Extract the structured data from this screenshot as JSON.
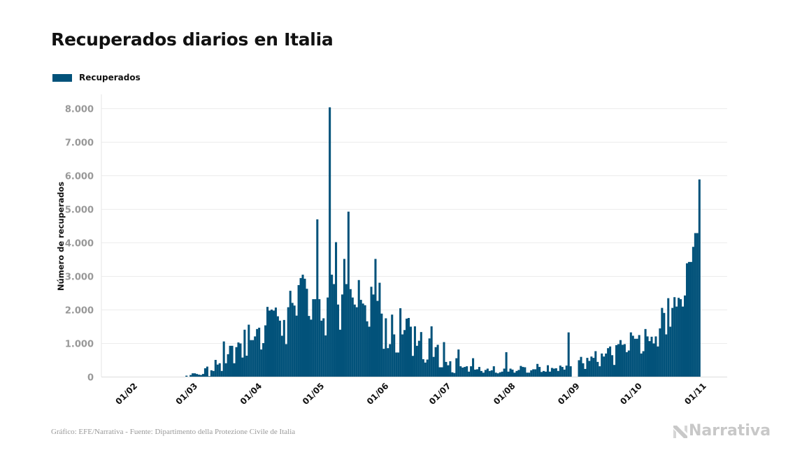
{
  "chart_data": {
    "type": "bar",
    "title": "Recuperados diarios en Italia",
    "xlabel": "",
    "ylabel": "Número de recuperados",
    "ylim": [
      0,
      8000
    ],
    "grid": true,
    "legend_position": "top-left",
    "y_ticks": [
      "0",
      "1.000",
      "2.000",
      "3.000",
      "4.000",
      "5.000",
      "6.000",
      "7.000",
      "8.000"
    ],
    "y_tick_values": [
      0,
      1000,
      2000,
      3000,
      4000,
      5000,
      6000,
      7000,
      8000
    ],
    "x_ticks": [
      "01/02",
      "01/03",
      "01/04",
      "01/05",
      "01/06",
      "01/07",
      "01/08",
      "01/09",
      "01/10",
      "01/11"
    ],
    "categories": [
      "01/02",
      "02/02",
      "03/02",
      "04/02",
      "05/02",
      "06/02",
      "07/02",
      "08/02",
      "09/02",
      "10/02",
      "11/02",
      "12/02",
      "13/02",
      "14/02",
      "15/02",
      "16/02",
      "17/02",
      "18/02",
      "19/02",
      "20/02",
      "21/02",
      "22/02",
      "23/02",
      "24/02",
      "25/02",
      "26/02",
      "27/02",
      "28/02",
      "29/02",
      "01/03",
      "02/03",
      "03/03",
      "04/03",
      "05/03",
      "06/03",
      "07/03",
      "08/03",
      "09/03",
      "10/03",
      "11/03",
      "12/03",
      "13/03",
      "14/03",
      "15/03",
      "16/03",
      "17/03",
      "18/03",
      "19/03",
      "20/03",
      "21/03",
      "22/03",
      "23/03",
      "24/03",
      "25/03",
      "26/03",
      "27/03",
      "28/03",
      "29/03",
      "30/03",
      "31/03",
      "01/04",
      "02/04",
      "03/04",
      "04/04",
      "05/04",
      "06/04",
      "07/04",
      "08/04",
      "09/04",
      "10/04",
      "11/04",
      "12/04",
      "13/04",
      "14/04",
      "15/04",
      "16/04",
      "17/04",
      "18/04",
      "19/04",
      "20/04",
      "21/04",
      "22/04",
      "23/04",
      "24/04",
      "25/04",
      "26/04",
      "27/04",
      "28/04",
      "29/04",
      "30/04",
      "01/05",
      "02/05",
      "03/05",
      "04/05",
      "05/05",
      "06/05",
      "07/05",
      "08/05",
      "09/05",
      "10/05",
      "11/05",
      "12/05",
      "13/05",
      "14/05",
      "15/05",
      "16/05",
      "17/05",
      "18/05",
      "19/05",
      "20/05",
      "21/05",
      "22/05",
      "23/05",
      "24/05",
      "25/05",
      "26/05",
      "27/05",
      "28/05",
      "29/05",
      "30/05",
      "31/05",
      "01/06",
      "02/06",
      "03/06",
      "04/06",
      "05/06",
      "06/06",
      "07/06",
      "08/06",
      "09/06",
      "10/06",
      "11/06",
      "12/06",
      "13/06",
      "14/06",
      "15/06",
      "16/06",
      "17/06",
      "18/06",
      "19/06",
      "20/06",
      "21/06",
      "22/06",
      "23/06",
      "24/06",
      "25/06",
      "26/06",
      "27/06",
      "28/06",
      "29/06",
      "30/06",
      "01/07",
      "02/07",
      "03/07",
      "04/07",
      "05/07",
      "06/07",
      "07/07",
      "08/07",
      "09/07",
      "10/07",
      "11/07",
      "12/07",
      "13/07",
      "14/07",
      "15/07",
      "16/07",
      "17/07",
      "18/07",
      "19/07",
      "20/07",
      "21/07",
      "22/07",
      "23/07",
      "24/07",
      "25/07",
      "26/07",
      "27/07",
      "28/07",
      "29/07",
      "30/07",
      "31/07",
      "01/08",
      "02/08",
      "03/08",
      "04/08",
      "05/08",
      "06/08",
      "07/08",
      "08/08",
      "09/08",
      "10/08",
      "11/08",
      "12/08",
      "13/08",
      "14/08",
      "15/08",
      "16/08",
      "17/08",
      "18/08",
      "19/08",
      "20/08",
      "21/08",
      "22/08",
      "23/08",
      "24/08",
      "25/08",
      "26/08",
      "27/08",
      "28/08",
      "29/08",
      "30/08",
      "31/08",
      "01/09",
      "02/09",
      "03/09",
      "04/09",
      "05/09",
      "06/09",
      "07/09",
      "08/09",
      "09/09",
      "10/09",
      "11/09",
      "12/09",
      "13/09",
      "14/09",
      "15/09",
      "16/09",
      "17/09",
      "18/09",
      "19/09",
      "20/09",
      "21/09",
      "22/09",
      "23/09",
      "24/09",
      "25/09",
      "26/09",
      "27/09",
      "28/09",
      "29/09",
      "30/09",
      "01/10",
      "02/10",
      "03/10",
      "04/10",
      "05/10",
      "06/10",
      "07/10",
      "08/10",
      "09/10",
      "10/10",
      "11/10",
      "12/10",
      "13/10",
      "14/10",
      "15/10",
      "16/10",
      "17/10",
      "18/10",
      "19/10",
      "20/10",
      "21/10",
      "22/10",
      "23/10",
      "24/10",
      "25/10",
      "26/10",
      "27/10",
      "28/10",
      "29/10",
      "30/10",
      "31/10",
      "01/11"
    ],
    "series": [
      {
        "name": "Recuperados",
        "color": "#02527a",
        "values": [
          0,
          0,
          0,
          0,
          0,
          0,
          0,
          0,
          0,
          0,
          0,
          0,
          0,
          0,
          0,
          0,
          0,
          0,
          0,
          0,
          0,
          0,
          0,
          0,
          0,
          0,
          0,
          30,
          0,
          50,
          100,
          100,
          80,
          60,
          50,
          80,
          250,
          300,
          15,
          190,
          170,
          500,
          360,
          400,
          170,
          1050,
          400,
          670,
          920,
          920,
          400,
          880,
          1020,
          990,
          570,
          1400,
          625,
          1550,
          1090,
          1090,
          1200,
          1420,
          1460,
          810,
          1000,
          1530,
          2080,
          1970,
          2000,
          1970,
          2060,
          1800,
          1670,
          1220,
          1690,
          970,
          2070,
          2560,
          2200,
          2120,
          1820,
          2730,
          2940,
          3040,
          2920,
          2620,
          1810,
          1700,
          2310,
          2310,
          4690,
          2310,
          1670,
          1740,
          1230,
          2360,
          8030,
          3040,
          2760,
          4010,
          2150,
          1400,
          2450,
          3510,
          2760,
          4920,
          2610,
          2360,
          2150,
          2070,
          2880,
          2290,
          2180,
          2130,
          1650,
          1490,
          2680,
          2450,
          3510,
          2260,
          2800,
          1880,
          830,
          1740,
          850,
          970,
          1850,
          1260,
          720,
          720,
          2040,
          1260,
          1390,
          1730,
          1750,
          1490,
          620,
          1500,
          920,
          1070,
          1330,
          520,
          420,
          510,
          1140,
          1500,
          590,
          880,
          950,
          280,
          280,
          1030,
          440,
          340,
          460,
          130,
          110,
          550,
          810,
          310,
          270,
          290,
          310,
          150,
          310,
          550,
          210,
          220,
          290,
          170,
          120,
          200,
          240,
          170,
          190,
          310,
          120,
          100,
          130,
          150,
          240,
          730,
          150,
          240,
          210,
          120,
          170,
          200,
          320,
          290,
          280,
          120,
          120,
          190,
          220,
          220,
          380,
          290,
          140,
          170,
          150,
          340,
          150,
          260,
          240,
          250,
          170,
          330,
          290,
          210,
          330,
          1320,
          310,
          0,
          0,
          0,
          490,
          590,
          400,
          230,
          560,
          470,
          600,
          560,
          760,
          440,
          310,
          690,
          600,
          690,
          850,
          900,
          640,
          350,
          940,
          970,
          1090,
          950,
          970,
          730,
          780,
          1320,
          1220,
          1130,
          1130,
          1240,
          690,
          760,
          1420,
          1200,
          1060,
          1190,
          990,
          1200,
          900,
          1440,
          2050,
          1900,
          1260,
          2340,
          1490,
          2050,
          2370,
          2090,
          2350,
          2310,
          2090,
          2420,
          3380,
          3420,
          3420,
          3870,
          4280,
          4280,
          5880
        ]
      }
    ]
  },
  "footer": {
    "source": "Gráfico: EFE/Narrativa - Fuente: Dipartimento della Protezione Civile de Italia"
  },
  "logo": {
    "text": "Narrativa",
    "icon": "narrativa-n-logo-icon",
    "color": "#c8c8c8"
  },
  "colors": {
    "bar": "#02527a",
    "grid": "#ececec",
    "tick_text": "#999999"
  }
}
